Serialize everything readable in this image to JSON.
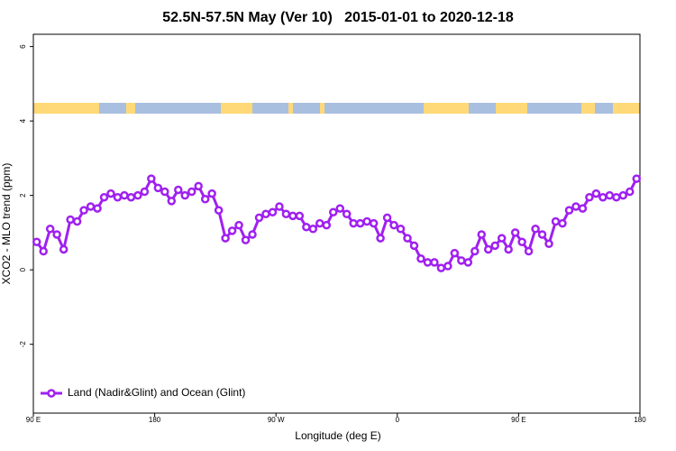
{
  "chart_data": {
    "type": "line",
    "title": "52.5N-57.5N May (Ver 10)   2015-01-01 to 2020-12-18",
    "x_label": "Longitude (deg E)",
    "y_label": "XCO2 - MLO trend (ppm)",
    "xlim": [
      90,
      540
    ],
    "ylim": [
      -3.85,
      6.33
    ],
    "xticks": [
      {
        "value": 90,
        "label": "90 E"
      },
      {
        "value": 180,
        "label": "180"
      },
      {
        "value": 270,
        "label": "90 W"
      },
      {
        "value": 360,
        "label": "0"
      },
      {
        "value": 450,
        "label": "90 E"
      },
      {
        "value": 540,
        "label": "180"
      }
    ],
    "yticks": [
      6,
      4,
      2,
      0,
      -2
    ],
    "grid": false,
    "legend": "bottom-left",
    "x": [
      92.5,
      97.5,
      102.5,
      107.5,
      112.5,
      117.5,
      122.5,
      127.5,
      132.5,
      137.5,
      142.5,
      147.5,
      152.5,
      157.5,
      162.5,
      167.5,
      172.5,
      177.5,
      182.5,
      187.5,
      192.5,
      197.5,
      202.5,
      207.5,
      212.5,
      217.5,
      222.5,
      227.5,
      232.5,
      237.5,
      242.5,
      247.5,
      252.5,
      257.5,
      262.5,
      267.5,
      272.5,
      277.5,
      282.5,
      287.5,
      292.5,
      297.5,
      302.5,
      307.5,
      312.5,
      317.5,
      322.5,
      327.5,
      332.5,
      337.5,
      342.5,
      347.5,
      352.5,
      357.5,
      362.5,
      367.5,
      372.5,
      377.5,
      382.5,
      387.5,
      392.5,
      397.5,
      402.5,
      407.5,
      412.5,
      417.5,
      422.5,
      427.5,
      432.5,
      437.5,
      442.5,
      447.5,
      452.5,
      457.5,
      462.5,
      467.5,
      472.5,
      477.5,
      482.5,
      487.5,
      492.5,
      497.5,
      502.5,
      507.5,
      512.5,
      517.5,
      522.5,
      527.5,
      532.5,
      537.5
    ],
    "series": [
      {
        "name": "Land (Nadir&Glint) and Ocean (Glint)",
        "color": "#a020f0",
        "values": [
          0.75,
          0.5,
          1.1,
          0.95,
          0.55,
          1.35,
          1.3,
          1.6,
          1.7,
          1.65,
          1.95,
          2.05,
          1.95,
          2.0,
          1.95,
          2.0,
          2.1,
          2.45,
          2.2,
          2.1,
          1.85,
          2.15,
          2.0,
          2.1,
          2.25,
          1.9,
          2.05,
          1.6,
          0.85,
          1.05,
          1.2,
          0.8,
          0.95,
          1.4,
          1.5,
          1.55,
          1.7,
          1.5,
          1.45,
          1.45,
          1.15,
          1.1,
          1.25,
          1.2,
          1.55,
          1.65,
          1.5,
          1.25,
          1.25,
          1.3,
          1.25,
          0.85,
          1.4,
          1.2,
          1.1,
          0.85,
          0.65,
          0.3,
          0.2,
          0.2,
          0.05,
          0.1,
          0.45,
          0.25,
          0.2,
          0.5,
          0.95,
          0.55,
          0.65,
          0.85,
          0.55,
          1.0,
          0.75,
          0.5,
          1.1,
          0.95,
          0.7,
          1.3,
          1.25,
          1.6,
          1.7,
          1.65,
          1.95,
          2.05,
          1.95,
          2.0,
          1.95,
          2.0,
          2.1,
          2.45
        ]
      }
    ]
  }
}
